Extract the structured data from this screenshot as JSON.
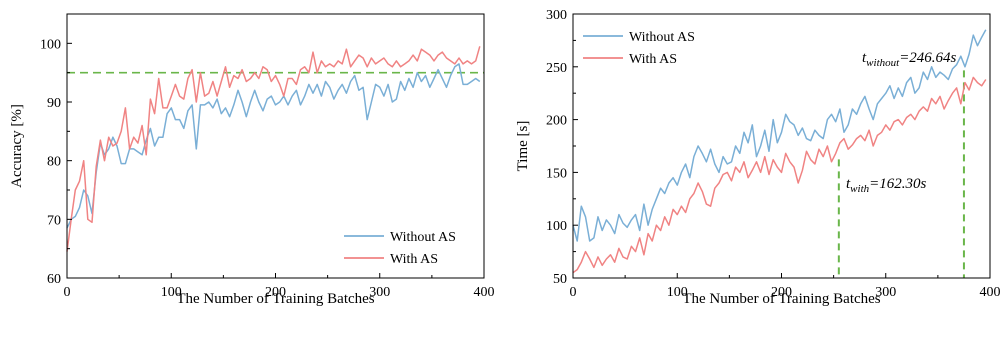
{
  "chart_data": [
    {
      "type": "line",
      "xlabel": "The Number of Training Batches",
      "ylabel": "Accuracy [%]",
      "xlim": [
        0,
        400
      ],
      "ylim": [
        60,
        105
      ],
      "x_ticks": [
        0,
        100,
        200,
        300,
        400
      ],
      "y_ticks": [
        60,
        70,
        80,
        90,
        100
      ],
      "grid": false,
      "legend_position": "bottom-right",
      "colors": {
        "without": "#7aafd6",
        "with": "#f08383",
        "threshold": "#6ab64a"
      },
      "reference_lines": [
        {
          "orientation": "horizontal",
          "y": 95,
          "style": "dashed"
        }
      ],
      "series": [
        {
          "name": "Without AS",
          "x": [
            0,
            4,
            8,
            12,
            16,
            20,
            24,
            28,
            32,
            36,
            40,
            44,
            48,
            52,
            56,
            60,
            64,
            68,
            72,
            76,
            80,
            84,
            88,
            92,
            96,
            100,
            104,
            108,
            112,
            116,
            120,
            124,
            128,
            132,
            136,
            140,
            144,
            148,
            152,
            156,
            160,
            164,
            168,
            172,
            176,
            180,
            184,
            188,
            192,
            196,
            200,
            204,
            208,
            212,
            216,
            220,
            224,
            228,
            232,
            236,
            240,
            244,
            248,
            252,
            256,
            260,
            264,
            268,
            272,
            276,
            280,
            284,
            288,
            292,
            296,
            300,
            304,
            308,
            312,
            316,
            320,
            324,
            328,
            332,
            336,
            340,
            344,
            348,
            352,
            356,
            360,
            364,
            368,
            372,
            376,
            380,
            384,
            388,
            392,
            396
          ],
          "values": [
            68.5,
            70,
            70.5,
            72,
            75,
            74,
            71,
            78,
            83,
            81,
            82,
            84,
            82.5,
            79.5,
            79.5,
            82,
            82,
            81.5,
            81,
            83.5,
            85.5,
            82.5,
            84,
            84,
            88,
            89,
            87,
            87,
            85.5,
            88.5,
            89.5,
            82,
            89.5,
            89.5,
            90,
            89,
            90.5,
            88,
            89,
            87.5,
            89.5,
            92,
            90,
            87.5,
            90,
            92,
            90,
            88.5,
            90.5,
            91,
            89.5,
            90,
            91,
            89.5,
            91,
            92,
            89.5,
            91,
            93,
            91.5,
            93,
            91,
            93.5,
            92.5,
            90.5,
            92,
            93,
            91.5,
            93.5,
            94.5,
            92,
            92.5,
            87,
            90,
            93,
            92.5,
            91,
            93,
            90,
            90.5,
            93.5,
            92,
            94,
            92.5,
            95,
            93.5,
            94.5,
            92.5,
            94,
            95.5,
            94,
            92.5,
            94.5,
            96,
            96.5,
            93,
            93,
            93.5,
            94,
            93.5
          ]
        },
        {
          "name": "With AS",
          "x": [
            0,
            4,
            8,
            12,
            16,
            20,
            24,
            28,
            32,
            36,
            40,
            44,
            48,
            52,
            56,
            60,
            64,
            68,
            72,
            76,
            80,
            84,
            88,
            92,
            96,
            100,
            104,
            108,
            112,
            116,
            120,
            124,
            128,
            132,
            136,
            140,
            144,
            148,
            152,
            156,
            160,
            164,
            168,
            172,
            176,
            180,
            184,
            188,
            192,
            196,
            200,
            204,
            208,
            212,
            216,
            220,
            224,
            228,
            232,
            236,
            240,
            244,
            248,
            252,
            256,
            260,
            264,
            268,
            272,
            276,
            280,
            284,
            288,
            292,
            296,
            300,
            304,
            308,
            312,
            316,
            320,
            324,
            328,
            332,
            336,
            340,
            344,
            348,
            352,
            356,
            360,
            364,
            368,
            372,
            376,
            380,
            384,
            388,
            392,
            396
          ],
          "values": [
            64.5,
            70,
            75,
            76.5,
            80,
            70,
            69.5,
            79,
            83.5,
            80,
            84,
            82.5,
            83,
            85,
            89,
            82,
            84,
            83,
            86,
            81,
            90.5,
            88,
            94,
            89,
            89,
            91,
            93,
            91,
            90.5,
            94,
            95.5,
            90,
            95,
            91,
            91.5,
            93.5,
            91,
            93.5,
            96,
            92.5,
            94.5,
            94,
            95.5,
            93.5,
            94,
            95,
            94,
            96,
            95.5,
            93.5,
            94.5,
            93,
            91,
            94,
            94,
            93,
            95.5,
            96,
            95,
            98.5,
            95,
            97,
            96,
            96.5,
            96,
            97,
            96.5,
            99,
            96,
            97,
            98,
            97.5,
            96,
            97.5,
            96.5,
            97,
            97.5,
            96.5,
            96,
            97,
            96,
            96.5,
            97,
            98,
            97,
            99,
            98.5,
            98,
            97,
            98,
            98.5,
            97.5,
            97,
            96.5,
            97.5,
            96.5,
            97,
            96.5,
            97,
            99.5
          ]
        }
      ]
    },
    {
      "type": "line",
      "xlabel": "The Number of Training Batches",
      "ylabel": "Time [s]",
      "xlim": [
        0,
        400
      ],
      "ylim": [
        50,
        300
      ],
      "x_ticks": [
        0,
        100,
        200,
        300,
        400
      ],
      "y_ticks": [
        50,
        100,
        150,
        200,
        250,
        300
      ],
      "grid": false,
      "legend_position": "top-left",
      "colors": {
        "without": "#7aafd6",
        "with": "#f08383",
        "marker": "#6ab64a"
      },
      "annotations": [
        {
          "main": "t",
          "subscript": "without",
          "suffix": "=246.64s",
          "x": 375,
          "y": 246.64
        },
        {
          "main": "t",
          "subscript": "with",
          "suffix": "=162.30s",
          "x": 255,
          "y": 162.3
        }
      ],
      "series": [
        {
          "name": "Without AS",
          "x": [
            0,
            4,
            8,
            12,
            16,
            20,
            24,
            28,
            32,
            36,
            40,
            44,
            48,
            52,
            56,
            60,
            64,
            68,
            72,
            76,
            80,
            84,
            88,
            92,
            96,
            100,
            104,
            108,
            112,
            116,
            120,
            124,
            128,
            132,
            136,
            140,
            144,
            148,
            152,
            156,
            160,
            164,
            168,
            172,
            176,
            180,
            184,
            188,
            192,
            196,
            200,
            204,
            208,
            212,
            216,
            220,
            224,
            228,
            232,
            236,
            240,
            244,
            248,
            252,
            256,
            260,
            264,
            268,
            272,
            276,
            280,
            284,
            288,
            292,
            296,
            300,
            304,
            308,
            312,
            316,
            320,
            324,
            328,
            332,
            336,
            340,
            344,
            348,
            352,
            356,
            360,
            364,
            368,
            372,
            376,
            380,
            384,
            388,
            392,
            396
          ],
          "values": [
            100,
            85,
            118,
            108,
            85,
            88,
            108,
            95,
            105,
            100,
            92,
            110,
            102,
            98,
            105,
            110,
            95,
            120,
            100,
            115,
            125,
            135,
            130,
            140,
            145,
            138,
            150,
            158,
            145,
            165,
            175,
            168,
            160,
            172,
            158,
            150,
            165,
            158,
            160,
            175,
            168,
            188,
            178,
            195,
            165,
            175,
            190,
            170,
            200,
            178,
            188,
            205,
            198,
            195,
            185,
            192,
            182,
            180,
            190,
            185,
            182,
            200,
            205,
            198,
            210,
            188,
            195,
            210,
            205,
            215,
            222,
            210,
            200,
            215,
            220,
            225,
            232,
            220,
            230,
            222,
            235,
            240,
            225,
            230,
            245,
            238,
            250,
            240,
            245,
            242,
            238,
            248,
            252,
            260,
            250,
            262,
            280,
            270,
            278,
            285
          ]
        },
        {
          "name": "With AS",
          "x": [
            0,
            4,
            8,
            12,
            16,
            20,
            24,
            28,
            32,
            36,
            40,
            44,
            48,
            52,
            56,
            60,
            64,
            68,
            72,
            76,
            80,
            84,
            88,
            92,
            96,
            100,
            104,
            108,
            112,
            116,
            120,
            124,
            128,
            132,
            136,
            140,
            144,
            148,
            152,
            156,
            160,
            164,
            168,
            172,
            176,
            180,
            184,
            188,
            192,
            196,
            200,
            204,
            208,
            212,
            216,
            220,
            224,
            228,
            232,
            236,
            240,
            244,
            248,
            252,
            256,
            260,
            264,
            268,
            272,
            276,
            280,
            284,
            288,
            292,
            296,
            300,
            304,
            308,
            312,
            316,
            320,
            324,
            328,
            332,
            336,
            340,
            344,
            348,
            352,
            356,
            360,
            364,
            368,
            372,
            376,
            380,
            384,
            388,
            392,
            396
          ],
          "values": [
            55,
            58,
            65,
            75,
            68,
            60,
            70,
            62,
            68,
            72,
            65,
            78,
            70,
            68,
            80,
            75,
            88,
            72,
            92,
            85,
            100,
            95,
            108,
            100,
            115,
            110,
            118,
            112,
            125,
            130,
            140,
            132,
            120,
            118,
            135,
            140,
            148,
            150,
            142,
            155,
            150,
            160,
            145,
            152,
            160,
            150,
            165,
            148,
            162,
            155,
            150,
            168,
            160,
            155,
            140,
            152,
            170,
            162,
            158,
            172,
            165,
            175,
            160,
            168,
            178,
            182,
            172,
            176,
            182,
            185,
            180,
            190,
            175,
            185,
            188,
            195,
            190,
            198,
            200,
            195,
            202,
            205,
            200,
            208,
            212,
            208,
            220,
            215,
            222,
            210,
            218,
            225,
            230,
            215,
            235,
            228,
            240,
            235,
            232,
            238
          ]
        }
      ]
    }
  ]
}
